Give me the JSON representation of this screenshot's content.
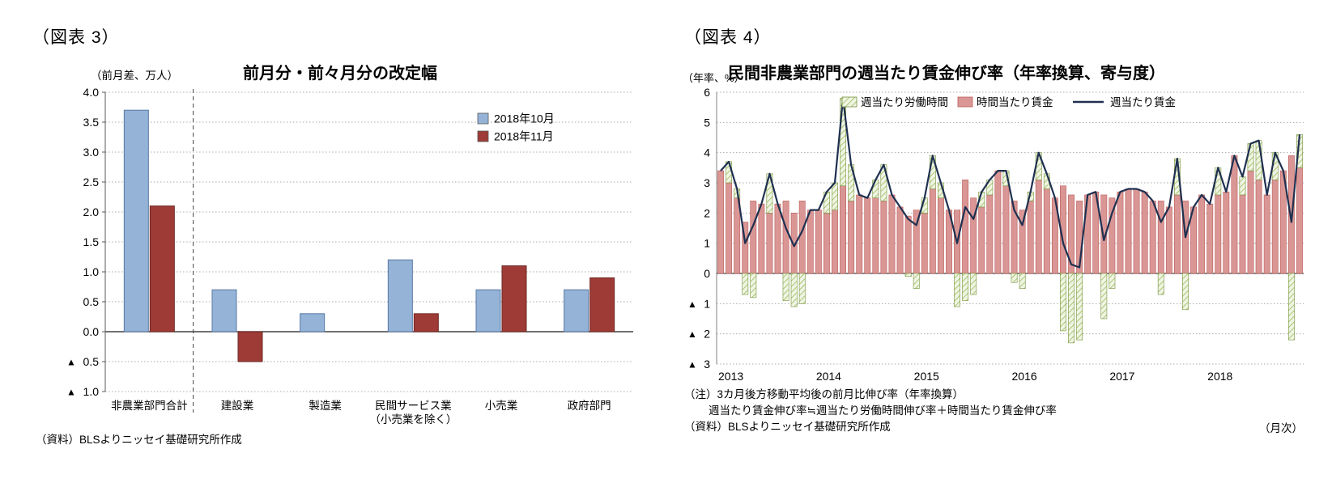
{
  "figure3": {
    "tag": "（図表 3）",
    "source": "（資料）BLSよりニッセイ基礎研究所作成"
  },
  "figure4": {
    "tag": "（図表 4）",
    "notes": [
      "（注）3カ月後方移動平均後の前月比伸び率（年率換算）",
      "週当たり賃金伸び率≒週当たり労働時間伸び率＋時間当たり賃金伸び率",
      "（資料）BLSよりニッセイ基礎研究所作成"
    ],
    "freq_label": "（月次）"
  },
  "chart_data": [
    {
      "type": "bar",
      "title": "前月分・前々月分の改定幅",
      "ylabel": "（前月差、万人）",
      "xlabel": "",
      "ylim": [
        -1.0,
        4.0
      ],
      "ytick_step": 0.5,
      "grid": true,
      "legend_position": "top-right",
      "categories": [
        "非農業部門合計",
        "建設業",
        "製造業",
        "民間サービス業\n（小売業を除く）",
        "小売業",
        "政府部門"
      ],
      "series": [
        {
          "name": "2018年10月",
          "fill": "#95B3D7",
          "border": "#5878A4",
          "values": [
            3.7,
            0.7,
            0.3,
            1.2,
            0.7,
            0.7
          ]
        },
        {
          "name": "2018年11月",
          "fill": "#9E3B36",
          "border": "#6E2824",
          "values": [
            2.1,
            -0.5,
            0.0,
            0.3,
            1.1,
            0.9
          ]
        }
      ]
    },
    {
      "type": "stacked-bar-line",
      "title": "民間非農業部門の週当たり賃金伸び率（年率換算、寄与度）",
      "ylabel": "（年率、%）",
      "xlabel": "",
      "ylim": [
        -3,
        6
      ],
      "ytick_step": 1,
      "grid": true,
      "legend_position": "top",
      "year_labels": [
        "2013",
        "2014",
        "2015",
        "2016",
        "2017",
        "2018"
      ],
      "x_range": "2013-01 to 2018-12 (monthly)",
      "series": [
        {
          "name": "週当たり労働時間",
          "kind": "bar-hatched",
          "fill": "#EFF4E3",
          "hatch_color": "#9ABB59",
          "border": "#77933C",
          "values": [
            0.0,
            0.7,
            0.3,
            -0.7,
            -0.8,
            0.0,
            1.3,
            0.0,
            -0.9,
            -1.1,
            -1.0,
            0.0,
            0.0,
            0.7,
            0.9,
            2.9,
            1.2,
            0.0,
            0.0,
            0.6,
            1.2,
            0.0,
            0.0,
            -0.1,
            -0.5,
            0.5,
            1.1,
            0.5,
            0.0,
            -1.1,
            -0.9,
            -0.7,
            0.5,
            0.5,
            0.0,
            0.5,
            -0.3,
            -0.5,
            0.3,
            0.9,
            0.5,
            0.0,
            -1.9,
            -2.3,
            -2.2,
            0.0,
            0.0,
            -1.5,
            -0.5,
            0.0,
            0.0,
            0.0,
            0.0,
            0.0,
            -0.7,
            0.0,
            1.2,
            -1.2,
            0.0,
            0.0,
            0.0,
            0.9,
            0.0,
            0.0,
            0.6,
            0.9,
            1.3,
            0.0,
            0.9,
            0.0,
            -2.2,
            1.1
          ]
        },
        {
          "name": "時間当たり賃金",
          "kind": "bar",
          "fill": "#D99694",
          "border": "#BB5E5B",
          "values": [
            3.4,
            3.0,
            2.5,
            1.7,
            2.4,
            2.3,
            2.0,
            2.3,
            2.4,
            2.0,
            2.4,
            2.1,
            2.1,
            2.0,
            2.1,
            2.9,
            2.4,
            2.6,
            2.5,
            2.5,
            2.4,
            2.6,
            2.2,
            1.9,
            2.1,
            2.0,
            2.8,
            2.5,
            2.1,
            2.1,
            3.1,
            2.5,
            2.2,
            2.6,
            3.4,
            2.9,
            2.4,
            2.1,
            2.4,
            3.1,
            2.8,
            2.5,
            2.9,
            2.6,
            2.4,
            2.6,
            2.7,
            2.6,
            2.5,
            2.7,
            2.8,
            2.8,
            2.7,
            2.4,
            2.4,
            2.2,
            2.6,
            2.4,
            2.2,
            2.6,
            2.3,
            2.6,
            2.7,
            3.9,
            2.6,
            3.4,
            3.1,
            2.6,
            3.1,
            3.4,
            3.9,
            3.5
          ]
        },
        {
          "name": "週当たり賃金",
          "kind": "line",
          "color": "#1F3050",
          "values": [
            3.4,
            3.7,
            2.8,
            1.0,
            1.6,
            2.3,
            3.3,
            2.3,
            1.5,
            0.9,
            1.4,
            2.1,
            2.1,
            2.7,
            3.0,
            5.8,
            3.6,
            2.6,
            2.5,
            3.1,
            3.6,
            2.6,
            2.2,
            1.8,
            1.6,
            2.5,
            3.9,
            3.0,
            2.1,
            1.0,
            2.2,
            1.8,
            2.7,
            3.1,
            3.4,
            3.4,
            2.1,
            1.6,
            2.7,
            4.0,
            3.3,
            2.5,
            1.0,
            0.3,
            0.2,
            2.6,
            2.7,
            1.1,
            2.0,
            2.7,
            2.8,
            2.8,
            2.7,
            2.4,
            1.7,
            2.2,
            3.8,
            1.2,
            2.2,
            2.6,
            2.3,
            3.5,
            2.7,
            3.9,
            3.2,
            4.3,
            4.4,
            2.6,
            4.0,
            3.4,
            1.7,
            4.6
          ]
        }
      ]
    }
  ]
}
